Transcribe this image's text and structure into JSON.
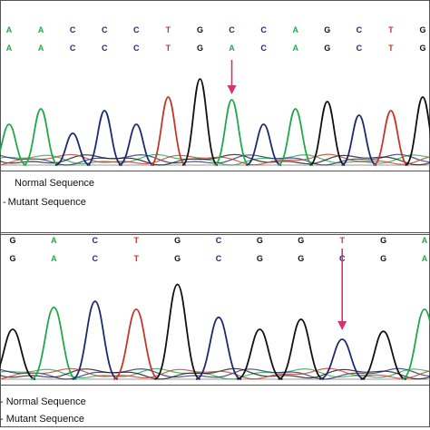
{
  "base_colors": {
    "A": "#22a84a",
    "C": "#1f2a6e",
    "G": "#111111",
    "T": "#c0392b"
  },
  "arrow_color": "#d6336c",
  "chart_data": [
    {
      "type": "line",
      "title": "",
      "normal_sequence": [
        "A",
        "A",
        "C",
        "C",
        "C",
        "T",
        "G",
        "C",
        "C",
        "A",
        "G",
        "C",
        "T",
        "G"
      ],
      "mutant_sequence": [
        "A",
        "A",
        "C",
        "C",
        "C",
        "T",
        "G",
        "A",
        "C",
        "A",
        "G",
        "C",
        "T",
        "G"
      ],
      "mutation_position_index": 7,
      "legend": [
        "Normal Sequence",
        "Mutant Sequence"
      ],
      "peaks": [
        {
          "base": "A",
          "height": 0.45
        },
        {
          "base": "A",
          "height": 0.62
        },
        {
          "base": "C",
          "height": 0.35
        },
        {
          "base": "C",
          "height": 0.6
        },
        {
          "base": "C",
          "height": 0.45
        },
        {
          "base": "T",
          "height": 0.75
        },
        {
          "base": "G",
          "height": 0.95
        },
        {
          "base": "A",
          "height": 0.72
        },
        {
          "base": "C",
          "height": 0.45
        },
        {
          "base": "A",
          "height": 0.62
        },
        {
          "base": "G",
          "height": 0.7
        },
        {
          "base": "C",
          "height": 0.55
        },
        {
          "base": "T",
          "height": 0.6
        },
        {
          "base": "G",
          "height": 0.75
        }
      ],
      "ylim": [
        0,
        1
      ]
    },
    {
      "type": "line",
      "title": "",
      "normal_sequence": [
        "G",
        "A",
        "C",
        "T",
        "G",
        "C",
        "G",
        "G",
        "T",
        "G",
        "A"
      ],
      "mutant_sequence": [
        "G",
        "A",
        "C",
        "T",
        "G",
        "C",
        "G",
        "G",
        "C",
        "G",
        "A"
      ],
      "mutation_position_index": 8,
      "legend": [
        "- Normal Sequence",
        "- Mutant Sequence"
      ],
      "peaks": [
        {
          "base": "G",
          "height": 0.5
        },
        {
          "base": "A",
          "height": 0.72
        },
        {
          "base": "C",
          "height": 0.78
        },
        {
          "base": "T",
          "height": 0.7
        },
        {
          "base": "G",
          "height": 0.95
        },
        {
          "base": "C",
          "height": 0.62
        },
        {
          "base": "G",
          "height": 0.5
        },
        {
          "base": "G",
          "height": 0.6
        },
        {
          "base": "C",
          "height": 0.4
        },
        {
          "base": "G",
          "height": 0.48
        },
        {
          "base": "A",
          "height": 0.7
        }
      ],
      "ylim": [
        0,
        1
      ]
    }
  ]
}
